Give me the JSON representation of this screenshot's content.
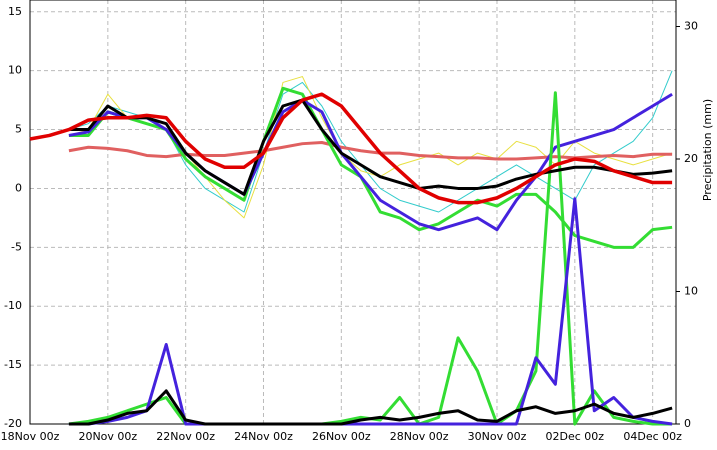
{
  "chart_data": {
    "type": "line",
    "y2_label": "Precipitation (mm)",
    "x": [
      0,
      0.5,
      1,
      1.5,
      2,
      2.5,
      3,
      3.5,
      4,
      4.5,
      5,
      5.5,
      6,
      6.5,
      7,
      7.5,
      8,
      8.5,
      9,
      9.5,
      10,
      10.5,
      11,
      11.5,
      12,
      12.5,
      13,
      13.5,
      14,
      14.5,
      15,
      15.5,
      16,
      16.5
    ],
    "xlim": [
      0,
      16.6
    ],
    "xticks": [
      {
        "value": 0,
        "label": "18Nov 00z"
      },
      {
        "value": 2,
        "label": "20Nov 00z"
      },
      {
        "value": 4,
        "label": "22Nov 00z"
      },
      {
        "value": 6,
        "label": "24Nov 00z"
      },
      {
        "value": 8,
        "label": "26Nov 00z"
      },
      {
        "value": 10,
        "label": "28Nov 00z"
      },
      {
        "value": 12,
        "label": "30Nov 00z"
      },
      {
        "value": 14,
        "label": "02Dec 00z"
      },
      {
        "value": 16,
        "label": "04Dec 00z"
      }
    ],
    "ylim": [
      -20,
      16
    ],
    "yticks": [
      -20,
      -15,
      -10,
      -5,
      0,
      5,
      10,
      15
    ],
    "y2lim": [
      0,
      32
    ],
    "y2ticks": [
      0,
      10,
      20,
      30
    ],
    "grid": true,
    "series": [
      {
        "color": "#33cccc",
        "width": 1,
        "values": [
          null,
          null,
          5,
          5.5,
          7,
          6.5,
          6,
          5,
          2,
          0,
          -1,
          -2,
          3,
          8,
          9,
          7,
          4,
          2,
          0,
          -1,
          -1.5,
          -2,
          -1,
          0,
          1,
          2,
          1,
          0,
          -1,
          2,
          3,
          4,
          6,
          10
        ]
      },
      {
        "color": "#e8e040",
        "width": 1,
        "values": [
          null,
          null,
          4.5,
          5,
          8,
          6,
          5.5,
          5,
          3,
          1,
          -1,
          -2.5,
          2,
          9,
          9.5,
          6,
          3,
          1.5,
          1,
          2,
          2.5,
          3,
          2,
          3,
          2.5,
          4,
          3.5,
          2,
          4,
          3,
          2.5,
          2,
          2.5,
          3
        ]
      },
      {
        "color": "#e06060",
        "width": 3,
        "values": [
          null,
          null,
          3.2,
          3.5,
          3.4,
          3.2,
          2.8,
          2.7,
          2.9,
          2.8,
          2.8,
          3,
          3.2,
          3.5,
          3.8,
          3.9,
          3.5,
          3.2,
          3,
          3,
          2.8,
          2.7,
          2.6,
          2.6,
          2.5,
          2.5,
          2.6,
          2.7,
          2.6,
          2.7,
          2.8,
          2.7,
          2.9,
          2.9
        ]
      },
      {
        "color": "#33dd33",
        "width": 3,
        "values": [
          null,
          null,
          4.5,
          4.5,
          6.5,
          6,
          5.5,
          5,
          2.5,
          1,
          0,
          -1,
          4,
          8.5,
          8,
          5,
          2,
          1,
          -2,
          -2.5,
          -3.5,
          -3,
          -2,
          -1,
          -1.5,
          -0.5,
          -0.5,
          -2,
          -4,
          -4.5,
          -5,
          -5,
          -3.5,
          -3.3
        ]
      },
      {
        "color": "#4422dd",
        "width": 3,
        "values": [
          null,
          null,
          4.5,
          4.8,
          6.5,
          6,
          6,
          5,
          3,
          1.5,
          0.5,
          -0.5,
          3,
          6.5,
          7.5,
          6.5,
          3,
          1,
          -1,
          -2,
          -3,
          -3.5,
          -3,
          -2.5,
          -3.5,
          -1,
          1,
          3.5,
          4,
          4.5,
          5,
          6,
          7,
          8
        ]
      },
      {
        "color": "#33dd33",
        "width": 3,
        "axis": "y2",
        "values": [
          null,
          null,
          0,
          0.2,
          0.5,
          1,
          1.5,
          2,
          0,
          0,
          0,
          0,
          0,
          0,
          0,
          0,
          0.2,
          0.5,
          0.3,
          2,
          0,
          0.5,
          6.5,
          4,
          0,
          1,
          4,
          25,
          0,
          2.5,
          0.5,
          0.2,
          0,
          0
        ]
      },
      {
        "color": "#4422dd",
        "width": 3,
        "axis": "y2",
        "values": [
          null,
          null,
          0,
          0,
          0.2,
          0.5,
          1,
          6,
          0,
          0,
          0,
          0,
          0,
          0,
          0,
          0,
          0,
          0,
          0,
          0,
          0,
          0,
          0,
          0,
          0,
          0,
          5,
          3,
          17,
          1,
          2,
          0.5,
          0.2,
          0
        ]
      },
      {
        "color": "#000000",
        "width": 3,
        "axis": "y2",
        "values": [
          null,
          null,
          0,
          0,
          0.3,
          0.8,
          1,
          2.5,
          0.3,
          0,
          0,
          0,
          0,
          0,
          0,
          0,
          0,
          0.3,
          0.5,
          0.3,
          0.5,
          0.8,
          1,
          0.3,
          0.2,
          1,
          1.3,
          0.8,
          1,
          1.5,
          0.8,
          0.5,
          0.8,
          1.2
        ]
      },
      {
        "color": "#000000",
        "width": 3,
        "values": [
          null,
          null,
          5,
          5,
          7,
          6,
          6,
          5.5,
          3,
          1.5,
          0.5,
          -0.5,
          4,
          7,
          7.5,
          5,
          3,
          2,
          1,
          0.5,
          0,
          0.2,
          0,
          0,
          0.2,
          0.8,
          1.2,
          1.5,
          1.8,
          1.8,
          1.5,
          1.2,
          1.3,
          1.5
        ]
      },
      {
        "color": "#e00000",
        "width": 3.5,
        "values": [
          4.2,
          4.5,
          5,
          5.8,
          6,
          6,
          6.2,
          6,
          4,
          2.5,
          1.8,
          1.8,
          3,
          6,
          7.5,
          8,
          7,
          5,
          3,
          1.5,
          0,
          -0.8,
          -1.2,
          -1.2,
          -0.8,
          0,
          1,
          2,
          2.5,
          2.3,
          1.5,
          1,
          0.5,
          0.5
        ]
      }
    ]
  }
}
